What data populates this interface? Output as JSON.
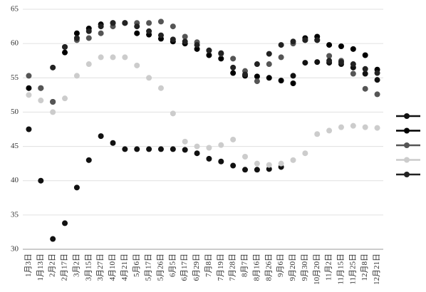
{
  "chart_data": {
    "type": "line",
    "categories": [
      "1月3日",
      "1月13日",
      "2月2日",
      "2月17日",
      "3月2日",
      "3月15日",
      "3月27日",
      "4月10日",
      "4月21日",
      "5月6日",
      "5月17日",
      "5月26日",
      "6月5日",
      "6月17日",
      "6月29日",
      "7月8日",
      "7月19日",
      "7月28日",
      "8月7日",
      "8月16日",
      "8月26日",
      "9月6日",
      "9月20日",
      "9月30日",
      "10月20日",
      "11月2日",
      "11月15日",
      "11月25日",
      "12月8日",
      "12月21日"
    ],
    "series": [
      {
        "color": "#111111",
        "values": [
          47.5,
          40,
          31.5,
          33.8,
          39,
          43,
          46.5,
          45.5,
          44.6,
          44.6,
          44.6,
          44.6,
          44.6,
          44.5,
          44,
          43.2,
          42.8,
          42.2,
          41.6,
          41.6,
          41.7,
          42,
          55.3,
          57.2,
          57.3,
          57.2,
          57,
          56.5,
          55.6,
          54.7
        ]
      },
      {
        "color": "#000000",
        "values": [
          53.5,
          53.5,
          51.5,
          58.7,
          61.5,
          62.2,
          62.8,
          63,
          63,
          61.5,
          61.3,
          60.7,
          60.3,
          60,
          59.2,
          58.3,
          57.8,
          55.7,
          55.3,
          55.2,
          55,
          54.6,
          54.2,
          60.8,
          61,
          59.8,
          59.6,
          59.2,
          58.3,
          56.2
        ]
      },
      {
        "color": "#555555",
        "values": [
          55.3,
          53.5,
          51.5,
          59.5,
          60.5,
          60.8,
          61.5,
          62.5,
          63,
          63,
          63,
          63.2,
          62.5,
          61,
          60.2,
          59,
          58.5,
          57.8,
          56,
          54.5,
          57,
          58,
          60,
          60.5,
          60.5,
          58.2,
          57.5,
          55.6,
          53.4,
          52.6
        ]
      },
      {
        "color": "#cccccc",
        "values": [
          52.5,
          51.7,
          50,
          52,
          55.3,
          57,
          58,
          58,
          58,
          56.8,
          55,
          53.5,
          49.8,
          45.7,
          45,
          44.8,
          45.2,
          46,
          43.5,
          42.5,
          42.3,
          42.5,
          43,
          44,
          46.8,
          47.3,
          47.8,
          48,
          47.8,
          47.7
        ]
      },
      {
        "color": "#222222",
        "values": [
          null,
          null,
          56.5,
          59.5,
          60.8,
          61.8,
          62.5,
          63,
          63,
          62.5,
          61.8,
          61.2,
          60.6,
          60.3,
          59.8,
          59,
          58.6,
          56.5,
          55.5,
          57,
          58.5,
          59.8,
          60.3,
          60.5,
          60.5,
          57.5,
          57.3,
          57,
          56.3,
          55.7
        ]
      }
    ],
    "ylim": [
      30,
      65
    ],
    "yticks": [
      30,
      35,
      40,
      45,
      50,
      55,
      60,
      65
    ],
    "grid": true,
    "legend": "right"
  }
}
